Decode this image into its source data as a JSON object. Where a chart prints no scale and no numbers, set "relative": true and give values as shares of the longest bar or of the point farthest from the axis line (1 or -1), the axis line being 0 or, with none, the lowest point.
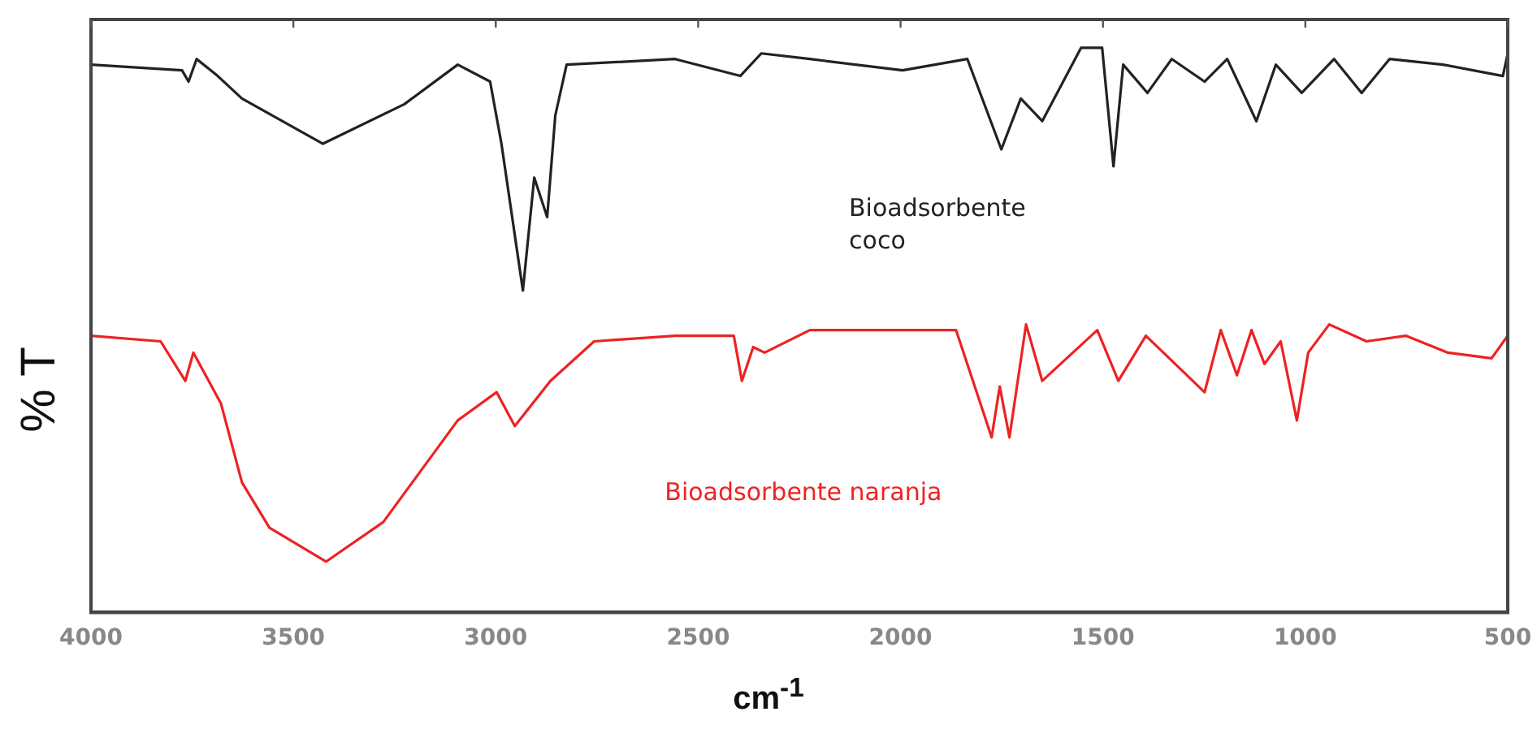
{
  "chart_data": {
    "type": "line",
    "xlabel": "cm$^{-1}$",
    "ylabel": "% T",
    "relative": true,
    "xlim": [
      4000,
      500
    ],
    "xticks": [
      4000,
      3500,
      3000,
      2500,
      2000,
      1500,
      1000,
      500
    ],
    "legend": false,
    "grid": false,
    "marker": "none",
    "series": [
      {
        "name": "Bioadsorbente coco",
        "color": "#222222",
        "x": [
          4000,
          3775,
          3759,
          3739,
          3687,
          3627,
          3427,
          3226,
          3094,
          3014,
          2986,
          2933,
          2905,
          2873,
          2853,
          2825,
          2557,
          2396,
          2344,
          2224,
          1995,
          1835,
          1751,
          1703,
          1650,
          1554,
          1502,
          1474,
          1450,
          1390,
          1330,
          1249,
          1193,
          1121,
          1073,
          1009,
          929,
          861,
          792,
          660,
          512,
          500
        ],
        "values": [
          0.97,
          0.96,
          0.94,
          0.98,
          0.95,
          0.91,
          0.83,
          0.9,
          0.97,
          0.94,
          0.83,
          0.57,
          0.77,
          0.7,
          0.88,
          0.97,
          0.98,
          0.95,
          0.99,
          0.98,
          0.96,
          0.98,
          0.82,
          0.91,
          0.87,
          1,
          1,
          0.79,
          0.97,
          0.92,
          0.98,
          0.94,
          0.98,
          0.87,
          0.97,
          0.92,
          0.98,
          0.92,
          0.98,
          0.97,
          0.95,
          0.99
        ]
      },
      {
        "name": "Bioadsorbente naranja",
        "color": "#ee2222",
        "x": [
          4000,
          3828,
          3767,
          3747,
          3679,
          3627,
          3559,
          3419,
          3278,
          3094,
          2998,
          2953,
          2865,
          2757,
          2557,
          2412,
          2392,
          2364,
          2336,
          2224,
          2063,
          1863,
          1775,
          1755,
          1731,
          1690,
          1650,
          1514,
          1462,
          1394,
          1249,
          1209,
          1169,
          1133,
          1101,
          1061,
          1021,
          993,
          941,
          849,
          752,
          648,
          540,
          500
        ],
        "values": [
          0.49,
          0.48,
          0.41,
          0.46,
          0.37,
          0.23,
          0.15,
          0.09,
          0.16,
          0.34,
          0.39,
          0.33,
          0.41,
          0.48,
          0.49,
          0.49,
          0.41,
          0.47,
          0.46,
          0.5,
          0.5,
          0.5,
          0.31,
          0.4,
          0.31,
          0.51,
          0.41,
          0.5,
          0.41,
          0.49,
          0.39,
          0.5,
          0.42,
          0.5,
          0.44,
          0.48,
          0.34,
          0.46,
          0.51,
          0.48,
          0.49,
          0.46,
          0.45,
          0.49
        ]
      }
    ]
  }
}
